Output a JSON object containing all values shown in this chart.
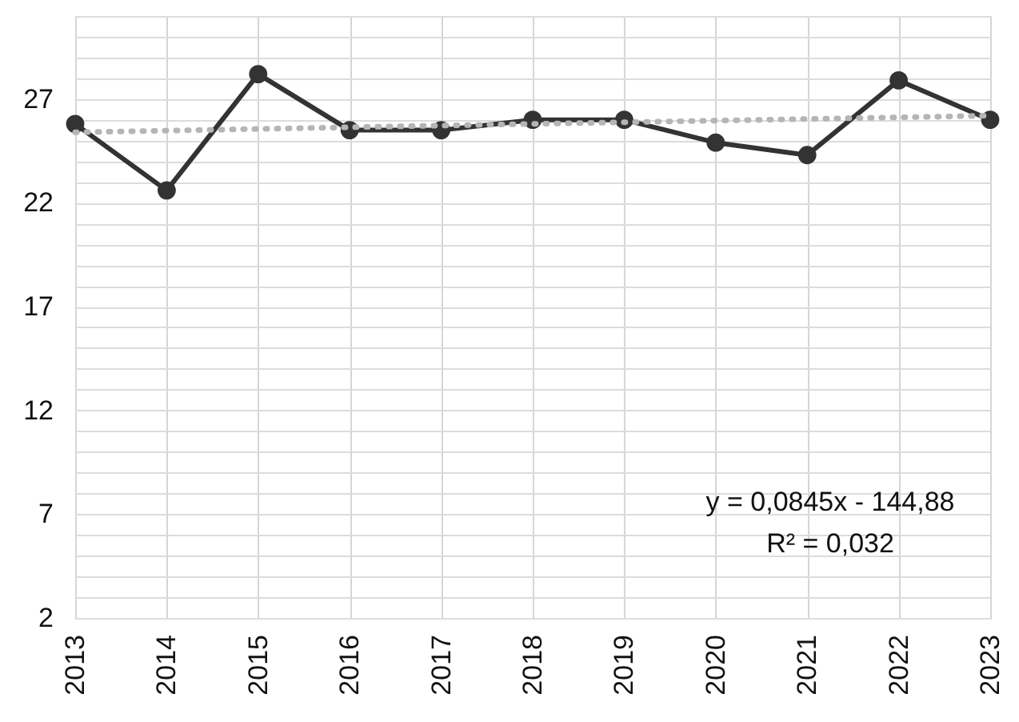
{
  "chart_data": {
    "type": "line",
    "categories": [
      "2013",
      "2014",
      "2015",
      "2016",
      "2017",
      "2018",
      "2019",
      "2020",
      "2021",
      "2022",
      "2023"
    ],
    "series": [
      {
        "type": "line",
        "color": "#333333",
        "marker": "circle",
        "line_style": "solid",
        "values": [
          25.8,
          22.6,
          28.2,
          25.5,
          25.5,
          26.0,
          26.0,
          24.9,
          24.3,
          27.9,
          26.0
        ]
      },
      {
        "type": "line",
        "color": "#b5b5b5",
        "marker": "none",
        "line_style": "dotted",
        "values": [
          25.4,
          null,
          null,
          null,
          null,
          null,
          null,
          null,
          null,
          null,
          26.2
        ]
      }
    ],
    "ylim": [
      2,
      31
    ],
    "yticks": [
      2,
      {
        "value": 3,
        "label": null
      },
      {
        "value": 4,
        "label": null
      },
      {
        "value": 5,
        "label": null
      },
      {
        "value": 6,
        "label": null
      },
      7,
      {
        "value": 8,
        "label": null
      },
      {
        "value": 9,
        "label": null
      },
      {
        "value": 10,
        "label": null
      },
      {
        "value": 11,
        "label": null
      },
      12,
      {
        "value": 13,
        "label": null
      },
      {
        "value": 14,
        "label": null
      },
      {
        "value": 15,
        "label": null
      },
      {
        "value": 16,
        "label": null
      },
      17,
      {
        "value": 18,
        "label": null
      },
      {
        "value": 19,
        "label": null
      },
      {
        "value": 20,
        "label": null
      },
      {
        "value": 21,
        "label": null
      },
      22,
      {
        "value": 23,
        "label": null
      },
      {
        "value": 24,
        "label": null
      },
      {
        "value": 25,
        "label": null
      },
      {
        "value": 26,
        "label": null
      },
      27,
      {
        "value": 28,
        "label": null
      },
      {
        "value": 29,
        "label": null
      },
      {
        "value": 30,
        "label": null
      },
      {
        "value": 31,
        "label": null
      }
    ],
    "grid": true,
    "legend": false,
    "annotations": [
      "y = 0,0845x - 144,88",
      "R² = 0,032"
    ]
  }
}
